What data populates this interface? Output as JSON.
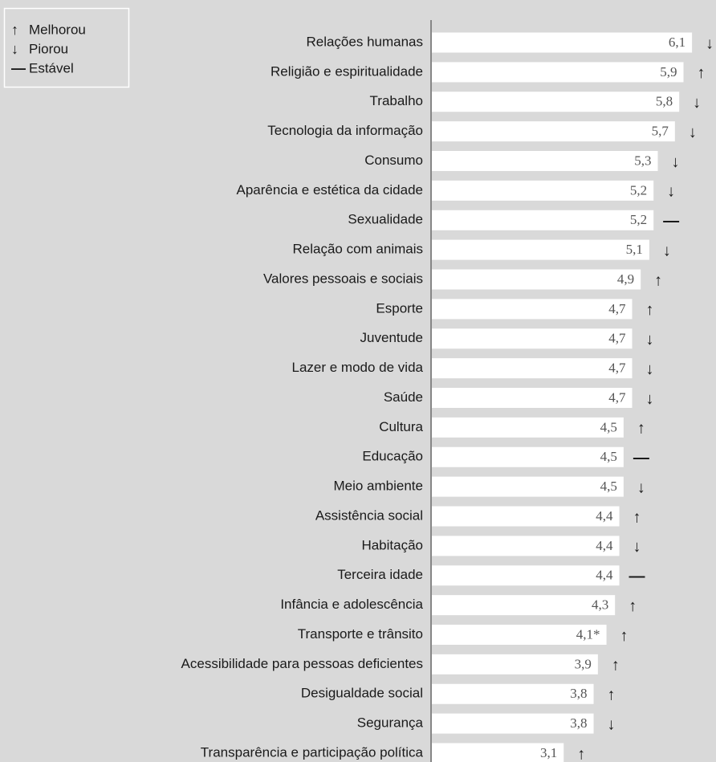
{
  "chart_data": {
    "type": "bar",
    "orientation": "horizontal",
    "categories": [
      "Relações humanas",
      "Religião e espiritualidade",
      "Trabalho",
      "Tecnologia da informação",
      "Consumo",
      "Aparência e estética da cidade",
      "Sexualidade",
      "Relação com animais",
      "Valores pessoais e sociais",
      "Esporte",
      "Juventude",
      "Lazer e modo de vida",
      "Saúde",
      "Cultura",
      "Educação",
      "Meio ambiente",
      "Assistência social",
      "Habitação",
      "Terceira idade",
      "Infância e adolescência",
      "Transporte e trânsito",
      "Acessibilidade para pessoas deficientes",
      "Desigualdade social",
      "Segurança",
      "Transparência e participação política"
    ],
    "values": [
      6.1,
      5.9,
      5.8,
      5.7,
      5.3,
      5.2,
      5.2,
      5.1,
      4.9,
      4.7,
      4.7,
      4.7,
      4.7,
      4.5,
      4.5,
      4.5,
      4.4,
      4.4,
      4.4,
      4.3,
      4.1,
      3.9,
      3.8,
      3.8,
      3.1
    ],
    "value_labels": [
      "6,1",
      "5,9",
      "5,8",
      "5,7",
      "5,3",
      "5,2",
      "5,2",
      "5,1",
      "4,9",
      "4,7",
      "4,7",
      "4,7",
      "4,7",
      "4,5",
      "4,5",
      "4,5",
      "4,4",
      "4,4",
      "4,4",
      "4,3",
      "4,1*",
      "3,9",
      "3,8",
      "3,8",
      "3,1"
    ],
    "trend": [
      "Piorou",
      "Melhorou",
      "Piorou",
      "Piorou",
      "Piorou",
      "Piorou",
      "Estável",
      "Piorou",
      "Melhorou",
      "Melhorou",
      "Piorou",
      "Piorou",
      "Piorou",
      "Melhorou",
      "Estável",
      "Piorou",
      "Melhorou",
      "Piorou",
      "Estável",
      "Melhorou",
      "Melhorou",
      "Melhorou",
      "Melhorou",
      "Piorou",
      "Melhorou"
    ],
    "legend": [
      {
        "symbol": "↑",
        "label": "Melhorou"
      },
      {
        "symbol": "↓",
        "label": "Piorou"
      },
      {
        "symbol": "—",
        "label": "Estável"
      }
    ],
    "color": "#ffffff",
    "xlim": [
      0,
      6.66
    ]
  }
}
